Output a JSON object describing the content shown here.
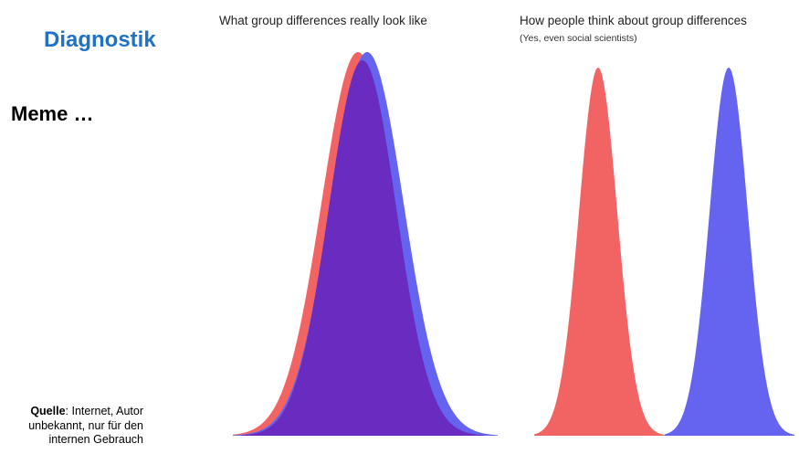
{
  "slide": {
    "title": "Diagnostik",
    "subtitle": "Meme …",
    "source_label": "Quelle",
    "source_text": ": Internet, Autor unbekannt, nur für den internen Gebrauch"
  },
  "meme": {
    "left_caption": "What group differences really look like",
    "right_caption": "How people think about group differences",
    "right_subcaption": "(Yes, even social scientists)"
  },
  "colors": {
    "title_blue": "#1f72c4",
    "curve_red": "#f26464",
    "curve_blue": "#6464f0",
    "curve_overlap": "#6a2cc0"
  }
}
